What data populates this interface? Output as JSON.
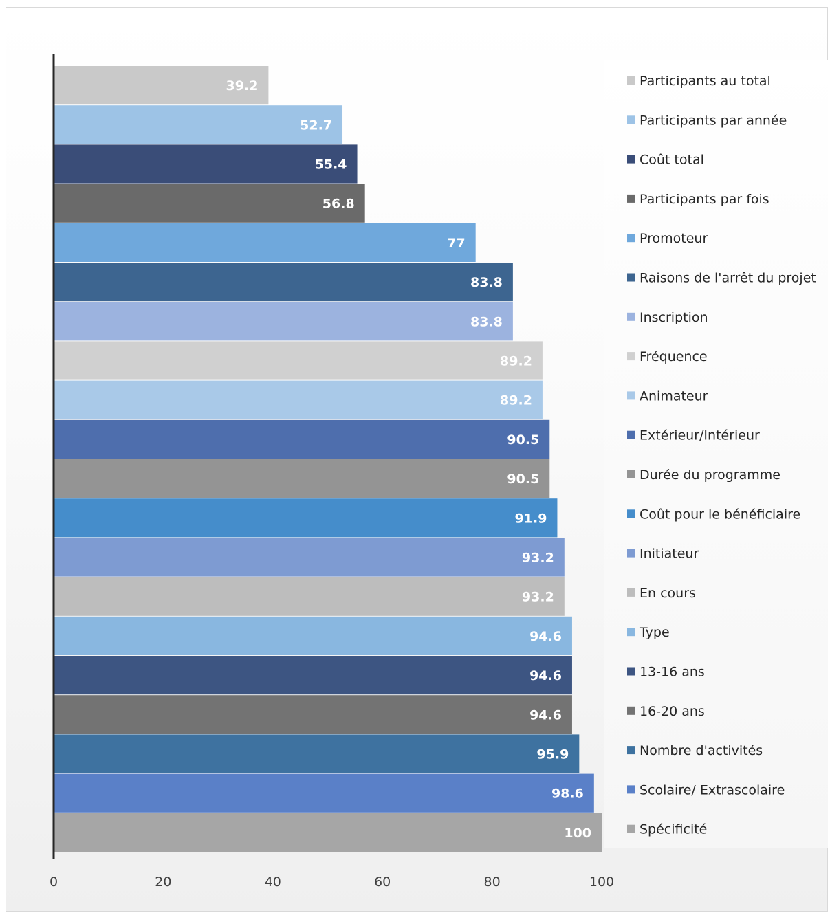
{
  "chart_data": {
    "type": "bar",
    "orientation": "horizontal",
    "title": "",
    "xlabel": "",
    "ylabel": "",
    "xlim": [
      0,
      100
    ],
    "x_ticks": [
      "0",
      "20",
      "40",
      "60",
      "80",
      "100"
    ],
    "grid": false,
    "legend_position": "right",
    "series": [
      {
        "name": "Participants au total",
        "value": 39.2,
        "label": "39.2",
        "color": "#c9c9c9"
      },
      {
        "name": "Participants par année",
        "value": 52.7,
        "label": "52.7",
        "color": "#9dc3e6"
      },
      {
        "name": "Coût total",
        "value": 55.4,
        "label": "55.4",
        "color": "#3a4d78"
      },
      {
        "name": "Participants par fois",
        "value": 56.8,
        "label": "56.8",
        "color": "#6a6a6a"
      },
      {
        "name": "Promoteur",
        "value": 77,
        "label": "77",
        "color": "#6fa8dc"
      },
      {
        "name": "Raisons de l'arrêt du projet",
        "value": 83.8,
        "label": "83.8",
        "color": "#3d6590"
      },
      {
        "name": "Inscription",
        "value": 83.8,
        "label": "83.8",
        "color": "#9cb3df"
      },
      {
        "name": "Fréquence",
        "value": 89.2,
        "label": "89.2",
        "color": "#d0d0d0"
      },
      {
        "name": "Animateur",
        "value": 89.2,
        "label": "89.2",
        "color": "#a9c9e8"
      },
      {
        "name": "Extérieur/Intérieur",
        "value": 90.5,
        "label": "90.5",
        "color": "#4e6ead"
      },
      {
        "name": "Durée du programme",
        "value": 90.5,
        "label": "90.5",
        "color": "#949494"
      },
      {
        "name": "Coût pour le bénéficiaire",
        "value": 91.9,
        "label": "91.9",
        "color": "#458dcb"
      },
      {
        "name": "Initiateur",
        "value": 93.2,
        "label": "93.2",
        "color": "#7e9bd2"
      },
      {
        "name": "En cours",
        "value": 93.2,
        "label": "93.2",
        "color": "#bdbdbd"
      },
      {
        "name": "Type",
        "value": 94.6,
        "label": "94.6",
        "color": "#89b7e0"
      },
      {
        "name": "13-16 ans",
        "value": 94.6,
        "label": "94.6",
        "color": "#3d5582"
      },
      {
        "name": "16-20 ans",
        "value": 94.6,
        "label": "94.6",
        "color": "#737373"
      },
      {
        "name": "Nombre d'activités",
        "value": 95.9,
        "label": "95.9",
        "color": "#3e72a0"
      },
      {
        "name": "Scolaire/ Extrascolaire",
        "value": 98.6,
        "label": "98.6",
        "color": "#5a80c8"
      },
      {
        "name": "Spécificité",
        "value": 100,
        "label": "100",
        "color": "#a6a6a6"
      }
    ]
  }
}
